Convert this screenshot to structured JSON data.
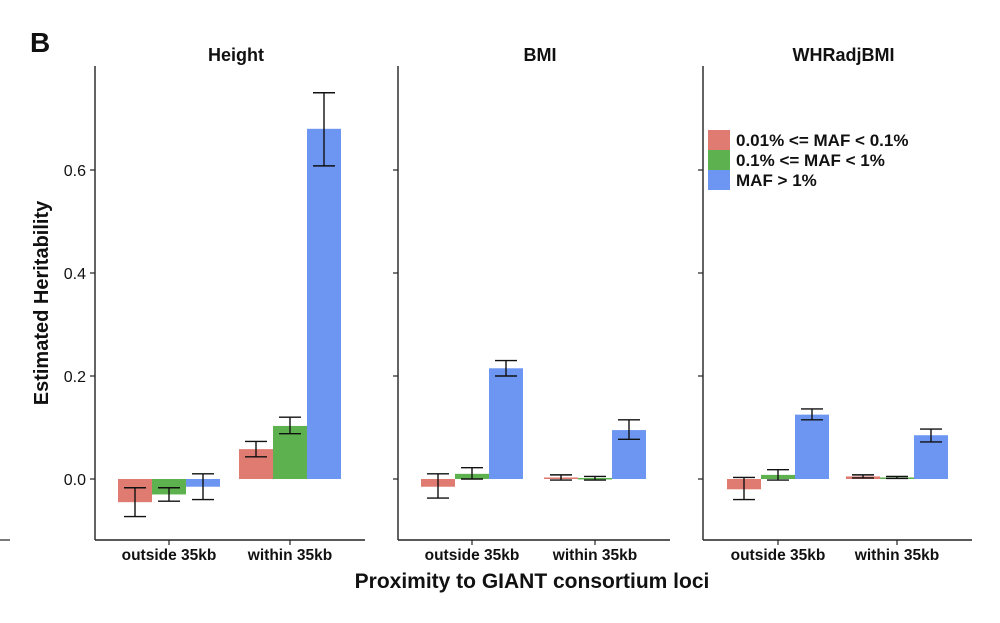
{
  "panel_letter": "B",
  "chart_data": {
    "type": "bar",
    "ylabel": "Estimated Heritability",
    "xlabel": "Proximity to GIANT consortium loci",
    "ylim": [
      -0.12,
      0.8
    ],
    "yticks": [
      "0.0",
      "0.2",
      "0.4",
      "0.6"
    ],
    "ytick_values": [
      0,
      0.2,
      0.4,
      0.6
    ],
    "categories": [
      "outside 35kb",
      "within 35kb"
    ],
    "legend": {
      "placement": "top-right",
      "entries": [
        {
          "label": "0.01% <= MAF < 0.1%",
          "color": "#E07B72"
        },
        {
          "label": "0.1% <= MAF < 1%",
          "color": "#5EB14F"
        },
        {
          "label": "MAF > 1%",
          "color": "#6C96F2"
        }
      ]
    },
    "panels": [
      {
        "title": "Height",
        "groups": [
          {
            "category": "outside 35kb",
            "bars": [
              {
                "series": "0.01% <= MAF < 0.1%",
                "value": -0.045,
                "lower": -0.073,
                "upper": -0.017
              },
              {
                "series": "0.1% <= MAF < 1%",
                "value": -0.03,
                "lower": -0.043,
                "upper": -0.017
              },
              {
                "series": "MAF > 1%",
                "value": -0.015,
                "lower": -0.04,
                "upper": 0.01
              }
            ]
          },
          {
            "category": "within 35kb",
            "bars": [
              {
                "series": "0.01% <= MAF < 0.1%",
                "value": 0.058,
                "lower": 0.043,
                "upper": 0.073
              },
              {
                "series": "0.1% <= MAF < 1%",
                "value": 0.103,
                "lower": 0.088,
                "upper": 0.12
              },
              {
                "series": "MAF > 1%",
                "value": 0.68,
                "lower": 0.608,
                "upper": 0.75
              }
            ]
          }
        ]
      },
      {
        "title": "BMI",
        "groups": [
          {
            "category": "outside 35kb",
            "bars": [
              {
                "series": "0.01% <= MAF < 0.1%",
                "value": -0.015,
                "lower": -0.037,
                "upper": 0.01
              },
              {
                "series": "0.1% <= MAF < 1%",
                "value": 0.01,
                "lower": 0.0,
                "upper": 0.022
              },
              {
                "series": "MAF > 1%",
                "value": 0.215,
                "lower": 0.2,
                "upper": 0.23
              }
            ]
          },
          {
            "category": "within 35kb",
            "bars": [
              {
                "series": "0.01% <= MAF < 0.1%",
                "value": 0.003,
                "lower": -0.002,
                "upper": 0.008
              },
              {
                "series": "0.1% <= MAF < 1%",
                "value": 0.002,
                "lower": -0.002,
                "upper": 0.005
              },
              {
                "series": "MAF > 1%",
                "value": 0.095,
                "lower": 0.077,
                "upper": 0.115
              }
            ]
          }
        ]
      },
      {
        "title": "WHRadjBMI",
        "groups": [
          {
            "category": "outside 35kb",
            "bars": [
              {
                "series": "0.01% <= MAF < 0.1%",
                "value": -0.02,
                "lower": -0.04,
                "upper": 0.003
              },
              {
                "series": "0.1% <= MAF < 1%",
                "value": 0.008,
                "lower": -0.002,
                "upper": 0.018
              },
              {
                "series": "MAF > 1%",
                "value": 0.125,
                "lower": 0.115,
                "upper": 0.136
              }
            ]
          },
          {
            "category": "within 35kb",
            "bars": [
              {
                "series": "0.01% <= MAF < 0.1%",
                "value": 0.005,
                "lower": 0.002,
                "upper": 0.008
              },
              {
                "series": "0.1% <= MAF < 1%",
                "value": 0.003,
                "lower": 0.001,
                "upper": 0.005
              },
              {
                "series": "MAF > 1%",
                "value": 0.085,
                "lower": 0.072,
                "upper": 0.097
              }
            ]
          }
        ]
      }
    ]
  }
}
